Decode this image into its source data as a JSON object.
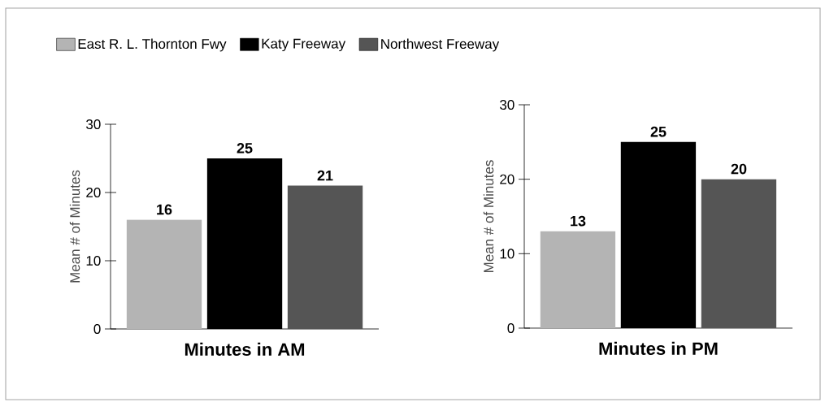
{
  "chart_data": [
    {
      "type": "bar",
      "xlabel": "Minutes in AM",
      "ylabel": "Mean # of Minutes",
      "categories": [
        null
      ],
      "series": [
        {
          "name": "East R. L. Thornton Fwy",
          "color": "#b4b4b4",
          "values": [
            16
          ]
        },
        {
          "name": "Katy Freeway",
          "color": "#000000",
          "values": [
            25
          ]
        },
        {
          "name": "Northwest Freeway",
          "color": "#555555",
          "values": [
            21
          ]
        }
      ],
      "ylim": [
        0,
        30
      ],
      "yticks": [
        0,
        10,
        20,
        30
      ],
      "data_labels": true,
      "legend": "top"
    },
    {
      "type": "bar",
      "xlabel": "Minutes in PM",
      "ylabel": "Mean # of Minutes",
      "categories": [
        null
      ],
      "series": [
        {
          "color": "#b4b4b4",
          "values": [
            13
          ]
        },
        {
          "color": "#000000",
          "values": [
            25
          ]
        },
        {
          "color": "#555555",
          "values": [
            20
          ]
        }
      ],
      "ylim": [
        0,
        30
      ],
      "yticks": [
        0,
        10,
        20,
        30
      ],
      "data_labels": true
    }
  ]
}
